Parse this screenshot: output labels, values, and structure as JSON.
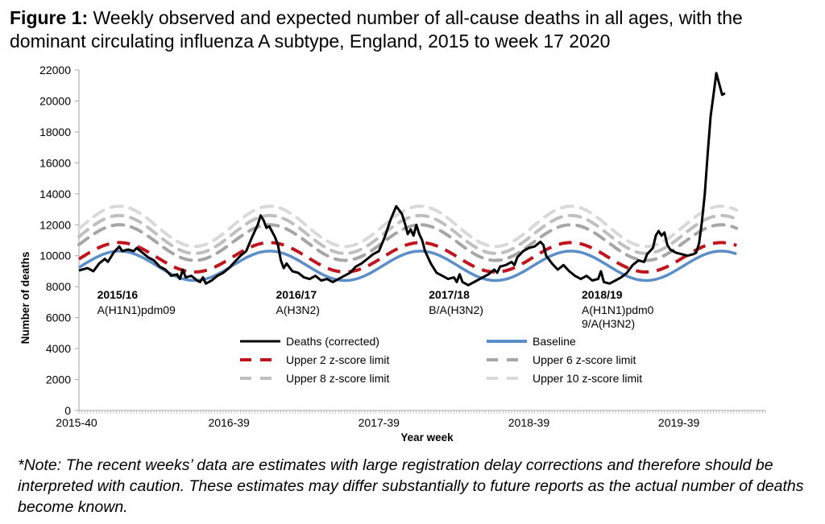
{
  "figure": {
    "title_bold": "Figure 1:",
    "title_rest": " Weekly observed and expected number of all-cause deaths in all ages, with the dominant circulating influenza A subtype, England, 2015 to week 17 2020",
    "note": "*Note: The recent weeks’ data are estimates with large registration delay corrections and therefore should be interpreted with caution. These estimates may differ substantially to future reports as the actual number of deaths become known."
  },
  "chart_data": {
    "type": "line",
    "title": "Weekly observed and expected number of all-cause deaths in all ages, with the dominant circulating influenza A subtype, England, 2015 to week 17 2020",
    "xlabel": "Year week",
    "ylabel": "Number of deaths",
    "ylim": [
      0,
      22000
    ],
    "yticks": [
      0,
      2000,
      4000,
      6000,
      8000,
      10000,
      12000,
      14000,
      16000,
      18000,
      20000,
      22000
    ],
    "xlim_weeks": [
      0,
      238
    ],
    "xtick_labels": [
      {
        "label": "2015-40",
        "week_index": 0
      },
      {
        "label": "2016-39",
        "week_index": 52
      },
      {
        "label": "2017-39",
        "week_index": 104
      },
      {
        "label": "2018-39",
        "week_index": 156
      },
      {
        "label": "2019-39",
        "week_index": 208
      }
    ],
    "grid": false,
    "legend_position": "bottom-center",
    "colors": {
      "deaths": "#000000",
      "baseline": "#5b8ec8",
      "upper2": "#c0141e",
      "upper6": "#a6a6a6",
      "upper8": "#bfbfbf",
      "upper10": "#d9d9d9"
    },
    "legend": [
      {
        "key": "deaths",
        "label": "Deaths (corrected)",
        "style": "solid"
      },
      {
        "key": "baseline",
        "label": "Baseline",
        "style": "solid"
      },
      {
        "key": "upper2",
        "label": "Upper 2 z-score limit",
        "style": "dashed"
      },
      {
        "key": "upper6",
        "label": "Upper 6 z-score limit",
        "style": "dashed"
      },
      {
        "key": "upper8",
        "label": "Upper 8 z-score limit",
        "style": "dashed"
      },
      {
        "key": "upper10",
        "label": "Upper 10 z-score limit",
        "style": "dashed"
      }
    ],
    "annotations": [
      {
        "season": "2015/16",
        "subtype": [
          "A(H1N1)pdm09"
        ],
        "week_index": 1
      },
      {
        "season": "2016/17",
        "subtype": [
          "A(H3N2)"
        ],
        "week_index": 63
      },
      {
        "season": "2017/18",
        "subtype": [
          "B/A(H3N2)"
        ],
        "week_index": 116
      },
      {
        "season": "2018/19",
        "subtype": [
          "A(H1N1)pdm0",
          "9/A(H3N2)"
        ],
        "week_index": 169
      }
    ],
    "baseline_model": {
      "mean": 9350,
      "amplitude": 950,
      "period_weeks": 52.18,
      "peak_week_offset": 14
    },
    "upper_limits_peak": {
      "upper2": 10850,
      "upper6": 12000,
      "upper8": 12600,
      "upper10": 13200
    },
    "upper_limits_trough": {
      "upper2": 8950,
      "upper6": 9700,
      "upper8": 10150,
      "upper10": 10600
    },
    "deaths_keypoints": [
      [
        0,
        9050
      ],
      [
        3,
        9200
      ],
      [
        5,
        9000
      ],
      [
        7,
        9500
      ],
      [
        9,
        9800
      ],
      [
        10,
        9600
      ],
      [
        12,
        10200
      ],
      [
        14,
        10600
      ],
      [
        15,
        10300
      ],
      [
        17,
        10400
      ],
      [
        19,
        10300
      ],
      [
        20,
        10500
      ],
      [
        22,
        10200
      ],
      [
        24,
        9900
      ],
      [
        26,
        9700
      ],
      [
        28,
        9300
      ],
      [
        30,
        9100
      ],
      [
        32,
        8700
      ],
      [
        34,
        8800
      ],
      [
        35,
        8500
      ],
      [
        36,
        9100
      ],
      [
        37,
        8600
      ],
      [
        39,
        8700
      ],
      [
        41,
        8400
      ],
      [
        42,
        8300
      ],
      [
        43,
        8600
      ],
      [
        44,
        8200
      ],
      [
        46,
        8400
      ],
      [
        48,
        8700
      ],
      [
        50,
        8900
      ],
      [
        52,
        9200
      ],
      [
        54,
        9600
      ],
      [
        56,
        10000
      ],
      [
        58,
        10300
      ],
      [
        60,
        11200
      ],
      [
        62,
        12000
      ],
      [
        63,
        12600
      ],
      [
        64,
        12300
      ],
      [
        65,
        11800
      ],
      [
        66,
        11900
      ],
      [
        68,
        11200
      ],
      [
        69,
        10700
      ],
      [
        70,
        9700
      ],
      [
        71,
        9200
      ],
      [
        72,
        9500
      ],
      [
        74,
        9000
      ],
      [
        76,
        8900
      ],
      [
        78,
        8600
      ],
      [
        80,
        8500
      ],
      [
        82,
        8700
      ],
      [
        84,
        8400
      ],
      [
        86,
        8500
      ],
      [
        88,
        8300
      ],
      [
        90,
        8500
      ],
      [
        92,
        8700
      ],
      [
        94,
        8900
      ],
      [
        96,
        9300
      ],
      [
        98,
        9500
      ],
      [
        100,
        9800
      ],
      [
        102,
        10100
      ],
      [
        104,
        10300
      ],
      [
        106,
        11200
      ],
      [
        108,
        12300
      ],
      [
        110,
        13200
      ],
      [
        112,
        12700
      ],
      [
        113,
        12100
      ],
      [
        114,
        11400
      ],
      [
        115,
        11700
      ],
      [
        116,
        11300
      ],
      [
        117,
        12000
      ],
      [
        118,
        11400
      ],
      [
        119,
        11000
      ],
      [
        120,
        10300
      ],
      [
        122,
        9500
      ],
      [
        124,
        8900
      ],
      [
        126,
        8700
      ],
      [
        128,
        8500
      ],
      [
        130,
        8600
      ],
      [
        131,
        8300
      ],
      [
        132,
        8800
      ],
      [
        133,
        8300
      ],
      [
        135,
        8100
      ],
      [
        136,
        8200
      ],
      [
        138,
        8400
      ],
      [
        140,
        8600
      ],
      [
        142,
        8800
      ],
      [
        144,
        9100
      ],
      [
        145,
        8900
      ],
      [
        146,
        9300
      ],
      [
        148,
        9400
      ],
      [
        150,
        9600
      ],
      [
        151,
        9400
      ],
      [
        152,
        9900
      ],
      [
        154,
        10300
      ],
      [
        156,
        10500
      ],
      [
        158,
        10600
      ],
      [
        160,
        10900
      ],
      [
        161,
        10700
      ],
      [
        162,
        10000
      ],
      [
        164,
        9500
      ],
      [
        166,
        9100
      ],
      [
        168,
        9400
      ],
      [
        170,
        9000
      ],
      [
        172,
        8700
      ],
      [
        174,
        8500
      ],
      [
        176,
        8700
      ],
      [
        178,
        8400
      ],
      [
        180,
        8500
      ],
      [
        181,
        9000
      ],
      [
        182,
        8300
      ],
      [
        184,
        8200
      ],
      [
        186,
        8400
      ],
      [
        188,
        8600
      ],
      [
        190,
        8900
      ],
      [
        192,
        9400
      ],
      [
        194,
        9700
      ],
      [
        196,
        9600
      ],
      [
        197,
        10100
      ],
      [
        199,
        10500
      ],
      [
        200,
        11300
      ],
      [
        201,
        11600
      ],
      [
        202,
        11300
      ],
      [
        203,
        11500
      ],
      [
        204,
        10700
      ],
      [
        205,
        10400
      ],
      [
        207,
        10200
      ],
      [
        209,
        10100
      ],
      [
        211,
        10000
      ],
      [
        213,
        10100
      ],
      [
        214,
        10200
      ],
      [
        215,
        10800
      ],
      [
        216,
        12200
      ],
      [
        217,
        14000
      ],
      [
        218,
        16600
      ],
      [
        219,
        19000
      ],
      [
        220,
        20400
      ],
      [
        221,
        21800
      ],
      [
        222,
        21100
      ],
      [
        223,
        20400
      ],
      [
        224,
        20500
      ]
    ]
  }
}
